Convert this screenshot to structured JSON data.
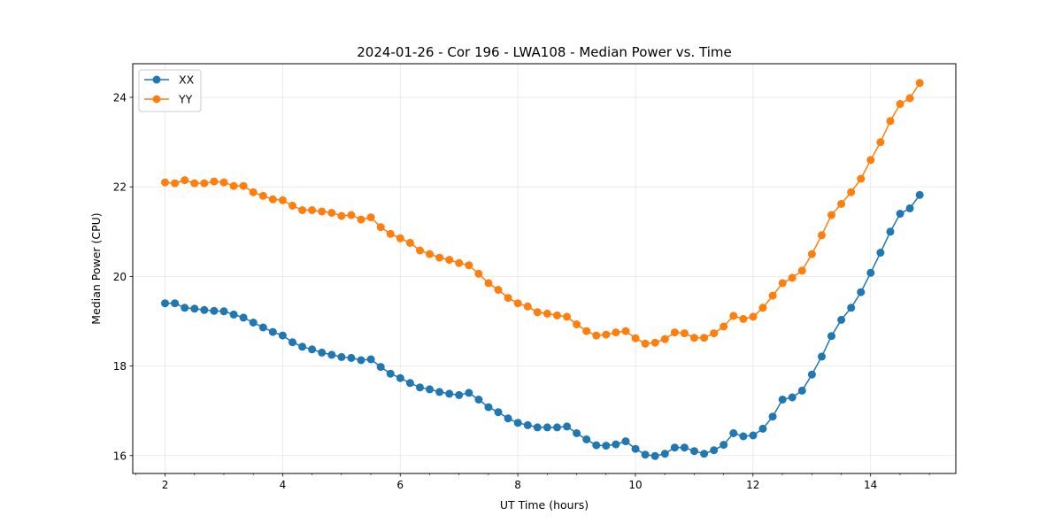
{
  "chart_data": {
    "type": "line",
    "title": "2024-01-26 - Cor 196 - LWA108 - Median Power vs. Time",
    "xlabel": "UT Time (hours)",
    "ylabel": "Median Power (CPU)",
    "xlim": [
      1.45,
      15.45
    ],
    "ylim": [
      15.6,
      24.75
    ],
    "xticks": [
      2,
      4,
      6,
      8,
      10,
      12,
      14
    ],
    "xtick_labels": [
      "2",
      "4",
      "6",
      "8",
      "10",
      "12",
      "14"
    ],
    "xminor": [
      1.5,
      2.5,
      3.0,
      3.5,
      4.5,
      5.0,
      5.5,
      6.5,
      7.0,
      7.5,
      8.5,
      9.0,
      9.5,
      10.5,
      11.0,
      11.5,
      12.5,
      13.0,
      13.5,
      14.5,
      15.0
    ],
    "yticks": [
      16,
      18,
      20,
      22,
      24
    ],
    "ytick_labels": [
      "16",
      "18",
      "20",
      "22",
      "24"
    ],
    "grid": true,
    "legend_position": "top-left",
    "x_start": 2.0,
    "x_step": 0.1667,
    "series": [
      {
        "name": "XX",
        "color": "#1f77b4",
        "values": [
          19.4,
          19.4,
          19.3,
          19.28,
          19.25,
          19.23,
          19.22,
          19.15,
          19.08,
          18.97,
          18.86,
          18.76,
          18.68,
          18.53,
          18.43,
          18.37,
          18.3,
          18.25,
          18.2,
          18.18,
          18.13,
          18.15,
          17.98,
          17.83,
          17.73,
          17.62,
          17.52,
          17.48,
          17.42,
          17.38,
          17.35,
          17.4,
          17.25,
          17.08,
          16.97,
          16.83,
          16.73,
          16.68,
          16.63,
          16.63,
          16.63,
          16.65,
          16.5,
          16.36,
          16.23,
          16.22,
          16.25,
          16.32,
          16.15,
          16.02,
          15.99,
          16.04,
          16.18,
          16.18,
          16.1,
          16.04,
          16.12,
          16.24,
          16.5,
          16.43,
          16.45,
          16.6,
          16.87,
          17.25,
          17.3,
          17.45,
          17.81,
          18.21,
          18.67,
          19.03,
          19.3,
          19.65,
          20.08,
          20.53,
          21.0,
          21.4,
          21.52,
          21.82
        ]
      },
      {
        "name": "YY",
        "color": "#ff7f0e",
        "values": [
          22.1,
          22.08,
          22.15,
          22.08,
          22.08,
          22.12,
          22.1,
          22.02,
          22.02,
          21.88,
          21.8,
          21.72,
          21.7,
          21.58,
          21.48,
          21.48,
          21.45,
          21.42,
          21.35,
          21.37,
          21.27,
          21.32,
          21.1,
          20.95,
          20.85,
          20.75,
          20.58,
          20.5,
          20.42,
          20.37,
          20.3,
          20.25,
          20.06,
          19.85,
          19.7,
          19.52,
          19.4,
          19.33,
          19.2,
          19.17,
          19.13,
          19.1,
          18.93,
          18.78,
          18.68,
          18.7,
          18.75,
          18.78,
          18.62,
          18.5,
          18.52,
          18.6,
          18.75,
          18.73,
          18.63,
          18.63,
          18.73,
          18.88,
          19.12,
          19.05,
          19.1,
          19.3,
          19.57,
          19.85,
          19.97,
          20.13,
          20.5,
          20.92,
          21.37,
          21.62,
          21.88,
          22.18,
          22.6,
          23.0,
          23.47,
          23.85,
          23.98,
          24.32
        ]
      }
    ]
  }
}
